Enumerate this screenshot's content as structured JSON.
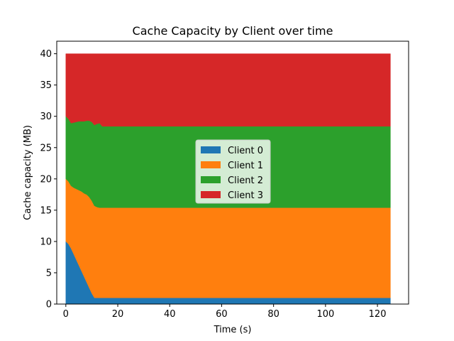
{
  "chart_data": {
    "type": "area",
    "stacked": true,
    "title": "Cache Capacity by Client over time",
    "xlabel": "Time (s)",
    "ylabel": "Cache capacity (MB)",
    "xlim": [
      -3.5,
      132
    ],
    "ylim": [
      0,
      42
    ],
    "xticks": [
      0,
      20,
      40,
      60,
      80,
      100,
      120
    ],
    "yticks": [
      0,
      5,
      10,
      15,
      20,
      25,
      30,
      35,
      40
    ],
    "grid": false,
    "legend_position": "center",
    "x": [
      0,
      1,
      2,
      3,
      4,
      5,
      6,
      7,
      8,
      9,
      10,
      11,
      12,
      13,
      14,
      15,
      16,
      20,
      40,
      60,
      80,
      100,
      120,
      125
    ],
    "series": [
      {
        "name": "Client 0",
        "color": "#1f77b4",
        "values": [
          10.0,
          9.6,
          8.9,
          8.0,
          7.1,
          6.2,
          5.3,
          4.4,
          3.5,
          2.6,
          1.7,
          1.0,
          1.0,
          1.0,
          1.0,
          1.0,
          1.0,
          1.0,
          1.0,
          1.0,
          1.0,
          1.0,
          1.0,
          1.0
        ]
      },
      {
        "name": "Client 1",
        "color": "#ff7f0e",
        "values": [
          10.0,
          10.0,
          10.0,
          10.6,
          11.3,
          12.0,
          12.7,
          13.3,
          14.0,
          14.5,
          14.8,
          14.7,
          14.5,
          14.4,
          14.4,
          14.4,
          14.4,
          14.4,
          14.4,
          14.4,
          14.4,
          14.4,
          14.4,
          14.4
        ]
      },
      {
        "name": "Client 2",
        "color": "#2ca02c",
        "values": [
          10.0,
          10.0,
          10.0,
          10.4,
          10.7,
          11.0,
          11.2,
          11.5,
          11.8,
          12.2,
          12.6,
          12.9,
          13.3,
          13.5,
          13.0,
          13.0,
          13.0,
          13.0,
          13.0,
          13.0,
          13.0,
          13.0,
          13.0,
          13.0
        ]
      },
      {
        "name": "Client 3",
        "color": "#d62728",
        "values": [
          10.0,
          10.4,
          11.1,
          11.0,
          10.9,
          10.8,
          10.8,
          10.8,
          10.7,
          10.7,
          10.9,
          11.4,
          11.2,
          11.1,
          11.6,
          11.6,
          11.6,
          11.6,
          11.6,
          11.6,
          11.6,
          11.6,
          11.6,
          11.6
        ]
      }
    ]
  }
}
